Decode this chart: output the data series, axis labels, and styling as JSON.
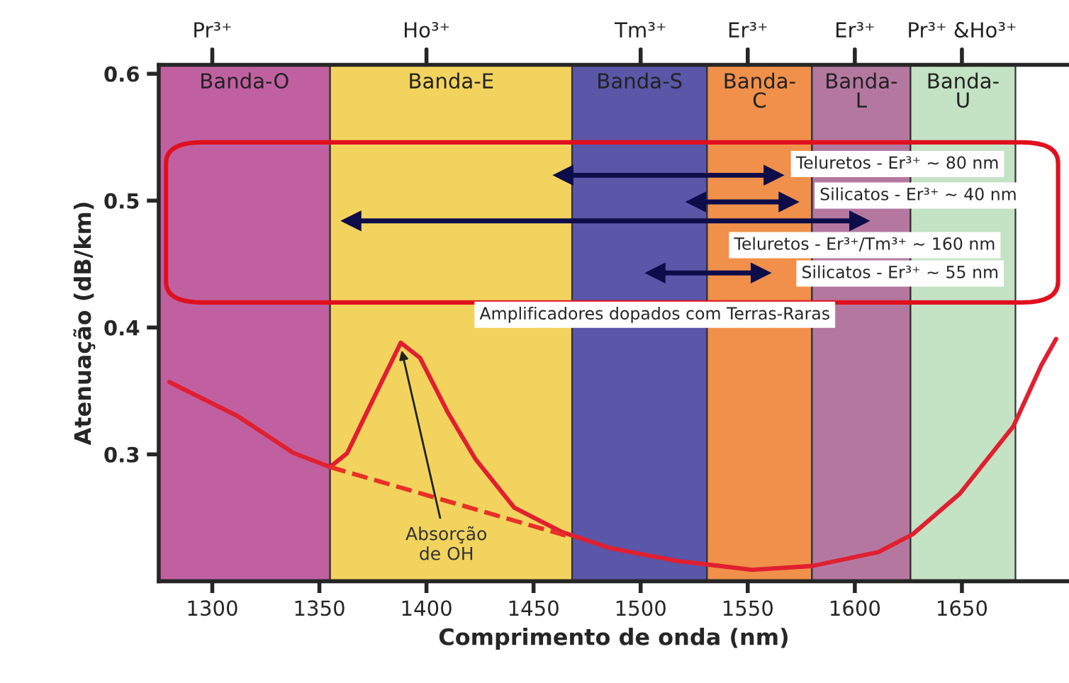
{
  "chart_data": {
    "type": "line",
    "xlabel": "Comprimento de onda (nm)",
    "ylabel": "Atenuação (dB/km)",
    "xlim": [
      1275,
      1700
    ],
    "xticks": [
      1300,
      1350,
      1400,
      1450,
      1500,
      1550,
      1600,
      1650
    ],
    "ylim": [
      0.2,
      0.607
    ],
    "yticks": [
      0.3,
      0.4,
      0.5,
      0.6
    ],
    "grid": false,
    "legend": false,
    "bands": [
      {
        "axis": "x",
        "from": 1275,
        "to": 1355,
        "label": "Banda-O",
        "color": "#c060a0"
      },
      {
        "axis": "x",
        "from": 1355,
        "to": 1468,
        "label": "Banda-E",
        "color": "#f2d35e"
      },
      {
        "axis": "x",
        "from": 1468,
        "to": 1531,
        "label": "Banda-S",
        "color": "#5a56a8"
      },
      {
        "axis": "x",
        "from": 1531,
        "to": 1580,
        "label": "Banda-\nC",
        "color": "#f0904a"
      },
      {
        "axis": "x",
        "from": 1580,
        "to": 1626,
        "label": "Banda-\nL",
        "color": "#b478a0"
      },
      {
        "axis": "x",
        "from": 1626,
        "to": 1675,
        "label": "Banda-\nU",
        "color": "#c4e2c4"
      }
    ],
    "series": [
      {
        "color": "#e02030",
        "line_style": "solid",
        "marker": "none",
        "x": [
          1280,
          1312,
          1338,
          1355,
          1363,
          1375,
          1388,
          1397,
          1410,
          1423,
          1441,
          1463,
          1486,
          1517,
          1552,
          1580,
          1611,
          1627,
          1649,
          1674,
          1687,
          1694
        ],
        "values": [
          0.357,
          0.33,
          0.301,
          0.29,
          0.301,
          0.343,
          0.388,
          0.376,
          0.333,
          0.296,
          0.258,
          0.239,
          0.226,
          0.216,
          0.209,
          0.212,
          0.223,
          0.237,
          0.269,
          0.322,
          0.37,
          0.391
        ]
      },
      {
        "color": "#e83028",
        "line_style": "dashed",
        "marker": "none",
        "x": [
          1355,
          1465
        ],
        "values": [
          0.29,
          0.236
        ]
      },
      {
        "color": "#0d0d4a",
        "line_style": "solid",
        "marker": "triangle",
        "x": [
          1464,
          1562
        ],
        "values": [
          0.52,
          0.52
        ]
      },
      {
        "color": "#0d0d4a",
        "line_style": "solid",
        "marker": "triangle",
        "x": [
          1526,
          1569
        ],
        "values": [
          0.499,
          0.499
        ]
      },
      {
        "color": "#0d0d4a",
        "line_style": "solid",
        "marker": "triangle",
        "x": [
          1365,
          1602
        ],
        "values": [
          0.484,
          0.484
        ]
      },
      {
        "color": "#0d0d4a",
        "line_style": "solid",
        "marker": "triangle",
        "x": [
          1507,
          1556
        ],
        "values": [
          0.443,
          0.443
        ]
      }
    ],
    "annotations": [
      "Teluretos - Er³⁺ ~ 80 nm",
      "Silicatos - Er³⁺ ~ 40 nm",
      "Teluretos - Er³⁺/Tm³⁺ ~ 160 nm",
      "Silicatos - Er³⁺ ~ 55 nm",
      "Amplificadores dopados com Terras-Raras",
      {
        "text": "Absorção\nde OH",
        "x": 1388,
        "y": 0.385
      },
      {
        "text": "Pr³⁺",
        "x": 1300,
        "y": 0.607
      },
      {
        "text": "Ho³⁺",
        "x": 1400,
        "y": 0.607
      },
      {
        "text": "Tm³⁺",
        "x": 1500,
        "y": 0.607
      },
      {
        "text": "Er³⁺",
        "x": 1550,
        "y": 0.607
      },
      {
        "text": "Er³⁺",
        "x": 1600,
        "y": 0.607
      },
      {
        "text": "Pr³⁺ &Ho³⁺",
        "x": 1650,
        "y": 0.607
      }
    ]
  }
}
